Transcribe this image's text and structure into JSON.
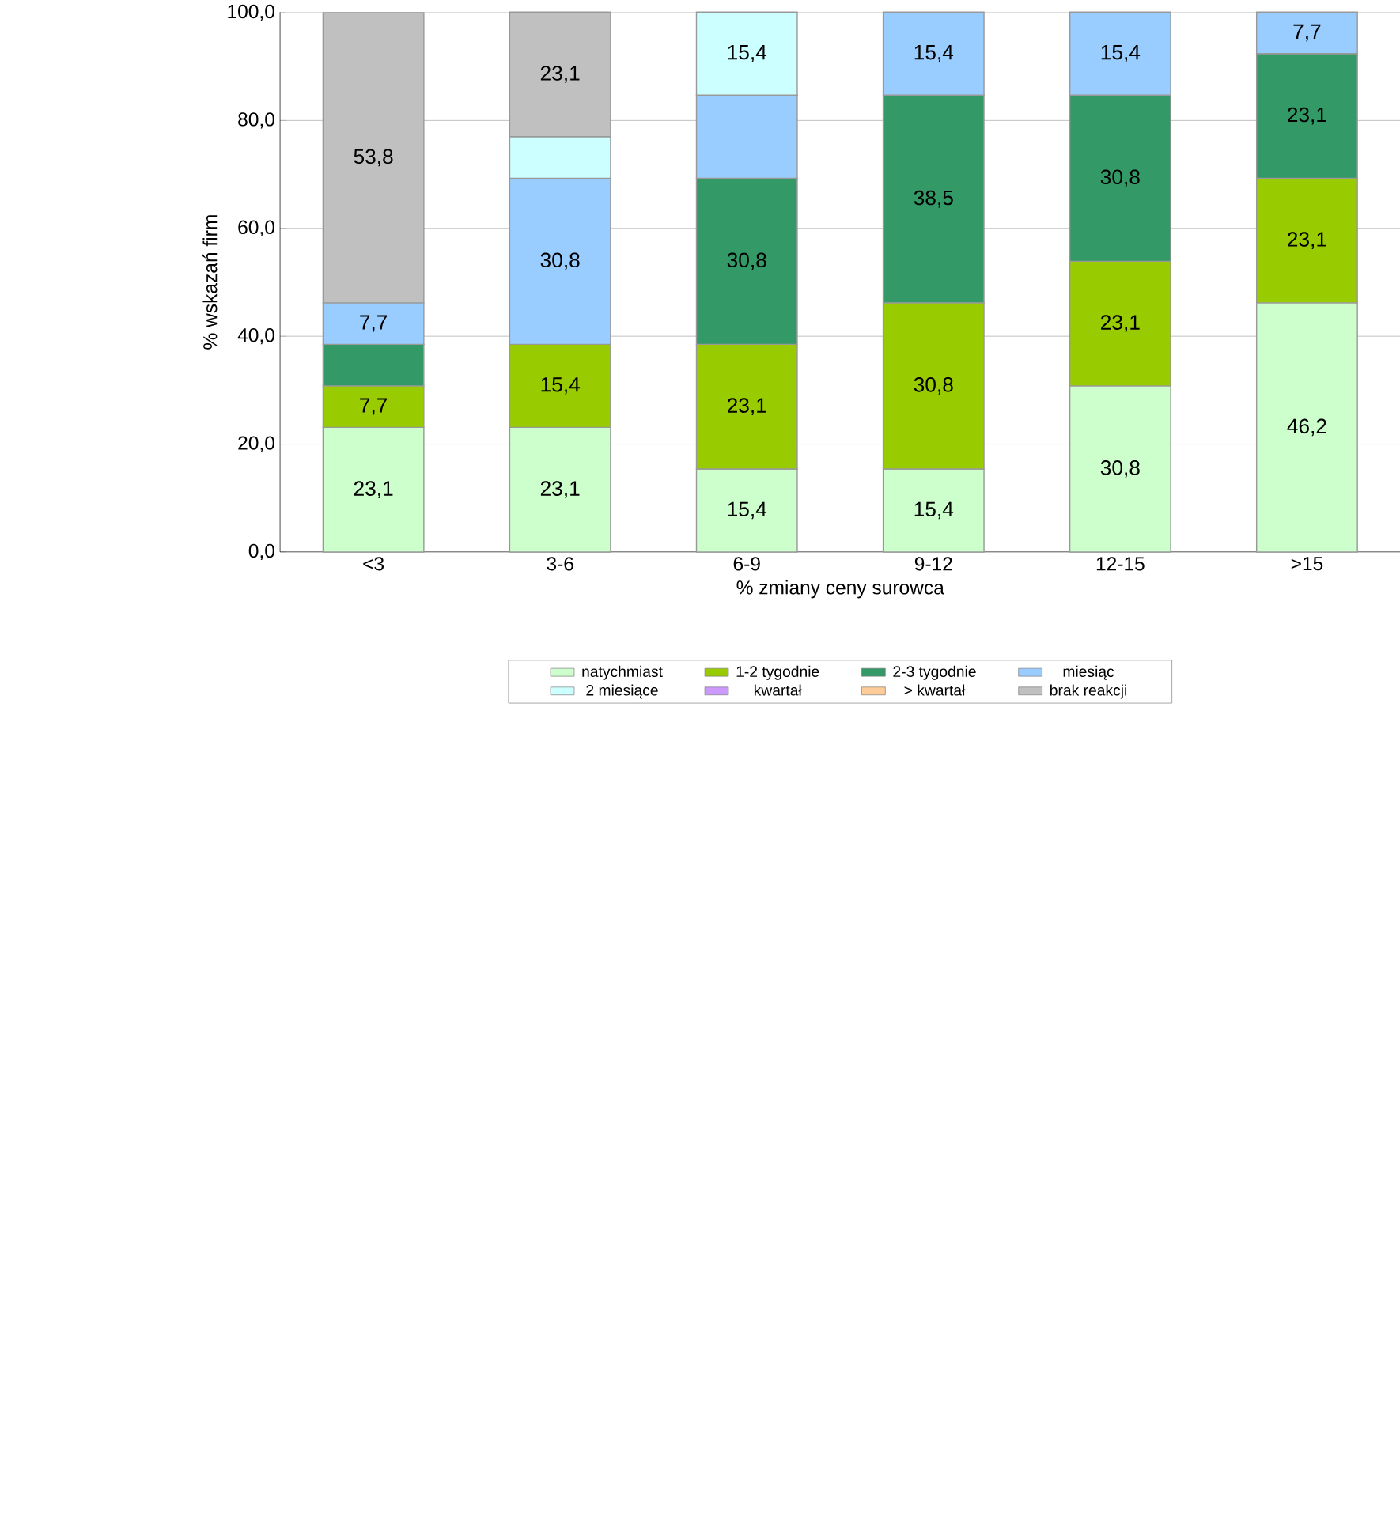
{
  "chart_data": {
    "type": "bar",
    "stacked": true,
    "xlabel": "% zmiany ceny surowca",
    "ylabel": "% wskazań firm",
    "categories": [
      "<3",
      "3-6",
      "6-9",
      "9-12",
      "12-15",
      ">15"
    ],
    "ylim": [
      0,
      100.1
    ],
    "yticks": [
      {
        "value": 0,
        "label": "0,0"
      },
      {
        "value": 20,
        "label": "20,0"
      },
      {
        "value": 40,
        "label": "40,0"
      },
      {
        "value": 60,
        "label": "60,0"
      },
      {
        "value": 80,
        "label": "80,0"
      },
      {
        "value": 100,
        "label": "100,0"
      }
    ],
    "grid": "y",
    "legend": "bottom",
    "series": [
      {
        "name": "natychmiast",
        "color": "#ccffcc",
        "values": [
          23.1,
          23.1,
          15.4,
          15.4,
          30.8,
          46.2
        ],
        "value_labels": [
          "23,1",
          "23,1",
          "15,4",
          "15,4",
          "30,8",
          "46,2"
        ]
      },
      {
        "name": "1-2 tygodnie",
        "color": "#99cc00",
        "values": [
          7.7,
          15.4,
          23.1,
          30.8,
          23.1,
          23.1
        ],
        "value_labels": [
          "7,7",
          "15,4",
          "23,1",
          "30,8",
          "23,1",
          "23,1"
        ]
      },
      {
        "name": "2-3 tygodnie",
        "color": "#339966",
        "values": [
          7.7,
          null,
          30.8,
          38.5,
          30.8,
          23.1
        ],
        "value_labels": [
          null,
          null,
          "30,8",
          "38,5",
          "30,8",
          "23,1"
        ]
      },
      {
        "name": "miesiąc",
        "color": "#99ccff",
        "values": [
          7.7,
          30.8,
          15.4,
          15.4,
          15.4,
          7.7
        ],
        "value_labels": [
          "7,7",
          "30,8",
          null,
          "15,4",
          "15,4",
          "7,7"
        ]
      },
      {
        "name": "2 miesiące",
        "color": "#ccffff",
        "values": [
          null,
          7.7,
          15.4,
          null,
          null,
          null
        ],
        "value_labels": [
          null,
          null,
          "15,4",
          null,
          null,
          null
        ]
      },
      {
        "name": "kwartał",
        "color": "#cc99ff",
        "values": [
          null,
          null,
          null,
          null,
          null,
          null
        ]
      },
      {
        "name": "> kwartał",
        "color": "#ffcc99",
        "values": [
          null,
          null,
          null,
          null,
          null,
          null
        ]
      },
      {
        "name": "brak reakcji",
        "color": "#c0c0c0",
        "values": [
          53.8,
          23.1,
          null,
          null,
          null,
          null
        ],
        "value_labels": [
          "53,8",
          "23,1",
          null,
          null,
          null,
          null
        ]
      }
    ]
  }
}
